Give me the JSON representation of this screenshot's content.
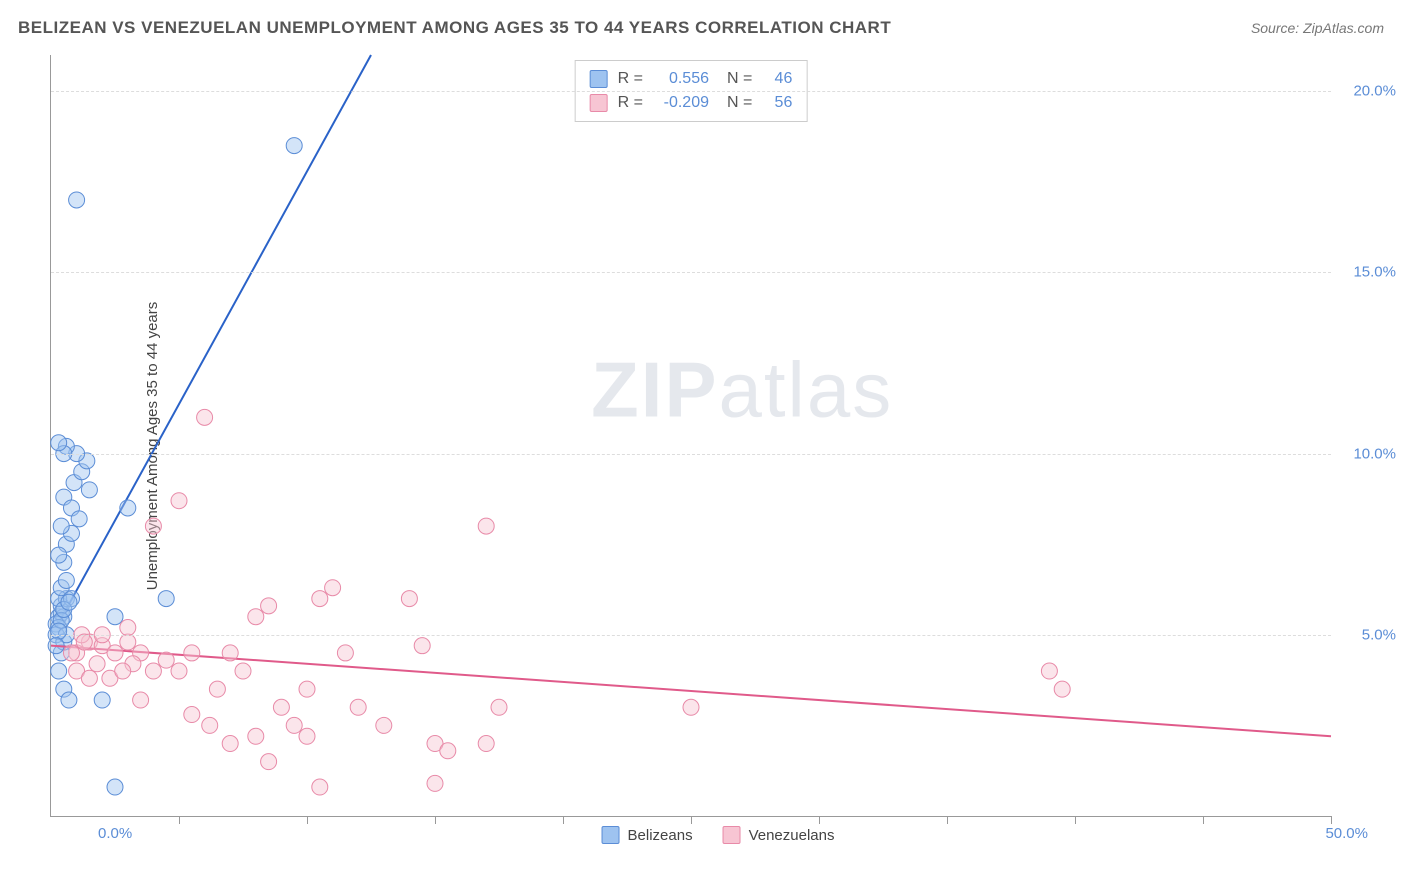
{
  "title": "BELIZEAN VS VENEZUELAN UNEMPLOYMENT AMONG AGES 35 TO 44 YEARS CORRELATION CHART",
  "source": "Source: ZipAtlas.com",
  "y_axis_label": "Unemployment Among Ages 35 to 44 years",
  "watermark_zip": "ZIP",
  "watermark_atlas": "atlas",
  "x_range": [
    0,
    50
  ],
  "y_range": [
    0,
    21
  ],
  "x_origin_label": "0.0%",
  "x_end_label": "50.0%",
  "y_ticks": [
    {
      "v": 5,
      "label": "5.0%"
    },
    {
      "v": 10,
      "label": "10.0%"
    },
    {
      "v": 15,
      "label": "15.0%"
    },
    {
      "v": 20,
      "label": "20.0%"
    }
  ],
  "x_tick_values": [
    5,
    10,
    15,
    20,
    25,
    30,
    35,
    40,
    45,
    50
  ],
  "grid_color": "#dddddd",
  "axis_color": "#999999",
  "tick_label_color": "#5b8dd6",
  "marker_radius": 8,
  "marker_opacity": 0.45,
  "line_width": 2,
  "series": [
    {
      "name": "Belizeans",
      "color_fill": "#9ec3f0",
      "color_stroke": "#5b8dd6",
      "line_color": "#2a62c8",
      "correlation_r": "0.556",
      "correlation_n": "46",
      "trend": {
        "x1": 0.2,
        "y1": 5.2,
        "x2": 12.5,
        "y2": 21.0
      },
      "points": [
        [
          0.3,
          5.5
        ],
        [
          0.4,
          5.6
        ],
        [
          0.5,
          5.5
        ],
        [
          0.4,
          5.8
        ],
        [
          0.6,
          6.0
        ],
        [
          0.2,
          5.3
        ],
        [
          0.3,
          5.2
        ],
        [
          0.5,
          7.0
        ],
        [
          0.6,
          7.5
        ],
        [
          0.8,
          7.8
        ],
        [
          0.4,
          8.0
        ],
        [
          0.5,
          8.8
        ],
        [
          0.9,
          9.2
        ],
        [
          1.2,
          9.5
        ],
        [
          1.4,
          9.8
        ],
        [
          1.0,
          10.0
        ],
        [
          0.6,
          10.2
        ],
        [
          0.5,
          10.0
        ],
        [
          0.3,
          10.3
        ],
        [
          1.5,
          9.0
        ],
        [
          3.0,
          8.5
        ],
        [
          0.5,
          3.5
        ],
        [
          0.7,
          3.2
        ],
        [
          2.0,
          3.2
        ],
        [
          0.3,
          4.0
        ],
        [
          0.4,
          4.5
        ],
        [
          0.3,
          6.0
        ],
        [
          0.4,
          6.3
        ],
        [
          0.8,
          6.0
        ],
        [
          4.5,
          6.0
        ],
        [
          2.5,
          5.5
        ],
        [
          0.2,
          5.0
        ],
        [
          1.0,
          17.0
        ],
        [
          9.5,
          18.5
        ],
        [
          0.5,
          4.8
        ],
        [
          0.6,
          5.0
        ],
        [
          0.4,
          5.4
        ],
        [
          0.5,
          5.7
        ],
        [
          2.5,
          0.8
        ],
        [
          0.3,
          5.1
        ],
        [
          0.7,
          5.9
        ],
        [
          0.3,
          7.2
        ],
        [
          0.8,
          8.5
        ],
        [
          1.1,
          8.2
        ],
        [
          0.6,
          6.5
        ],
        [
          0.2,
          4.7
        ]
      ]
    },
    {
      "name": "Venezuelans",
      "color_fill": "#f7c5d3",
      "color_stroke": "#e88aa8",
      "line_color": "#e05a8a",
      "correlation_r": "-0.209",
      "correlation_n": "56",
      "trend": {
        "x1": 0,
        "y1": 4.7,
        "x2": 50,
        "y2": 2.2
      },
      "points": [
        [
          1.0,
          4.5
        ],
        [
          1.5,
          4.8
        ],
        [
          2.0,
          4.7
        ],
        [
          2.5,
          4.5
        ],
        [
          3.0,
          4.8
        ],
        [
          3.5,
          4.5
        ],
        [
          2.0,
          5.0
        ],
        [
          3.0,
          5.2
        ],
        [
          4.0,
          4.0
        ],
        [
          4.5,
          4.3
        ],
        [
          5.0,
          4.0
        ],
        [
          5.5,
          4.5
        ],
        [
          4.0,
          8.0
        ],
        [
          5.0,
          8.7
        ],
        [
          6.0,
          11.0
        ],
        [
          6.5,
          3.5
        ],
        [
          7.0,
          4.5
        ],
        [
          7.5,
          4.0
        ],
        [
          8.0,
          5.5
        ],
        [
          8.5,
          5.8
        ],
        [
          7.0,
          2.0
        ],
        [
          8.0,
          2.2
        ],
        [
          8.5,
          1.5
        ],
        [
          9.0,
          3.0
        ],
        [
          9.5,
          2.5
        ],
        [
          10.0,
          3.5
        ],
        [
          10.5,
          6.0
        ],
        [
          11.0,
          6.3
        ],
        [
          10.0,
          2.2
        ],
        [
          10.5,
          0.8
        ],
        [
          11.5,
          4.5
        ],
        [
          12.0,
          3.0
        ],
        [
          13.0,
          2.5
        ],
        [
          14.0,
          6.0
        ],
        [
          14.5,
          4.7
        ],
        [
          15.0,
          2.0
        ],
        [
          15.5,
          1.8
        ],
        [
          15.0,
          0.9
        ],
        [
          17.0,
          8.0
        ],
        [
          17.5,
          3.0
        ],
        [
          17.0,
          2.0
        ],
        [
          25.0,
          3.0
        ],
        [
          1.2,
          5.0
        ],
        [
          1.8,
          4.2
        ],
        [
          2.3,
          3.8
        ],
        [
          3.2,
          4.2
        ],
        [
          0.8,
          4.5
        ],
        [
          1.3,
          4.8
        ],
        [
          5.5,
          2.8
        ],
        [
          6.2,
          2.5
        ],
        [
          2.8,
          4.0
        ],
        [
          3.5,
          3.2
        ],
        [
          39.0,
          4.0
        ],
        [
          39.5,
          3.5
        ],
        [
          1.0,
          4.0
        ],
        [
          1.5,
          3.8
        ]
      ]
    }
  ],
  "legend_label_r": "R =",
  "legend_label_n": "N ="
}
